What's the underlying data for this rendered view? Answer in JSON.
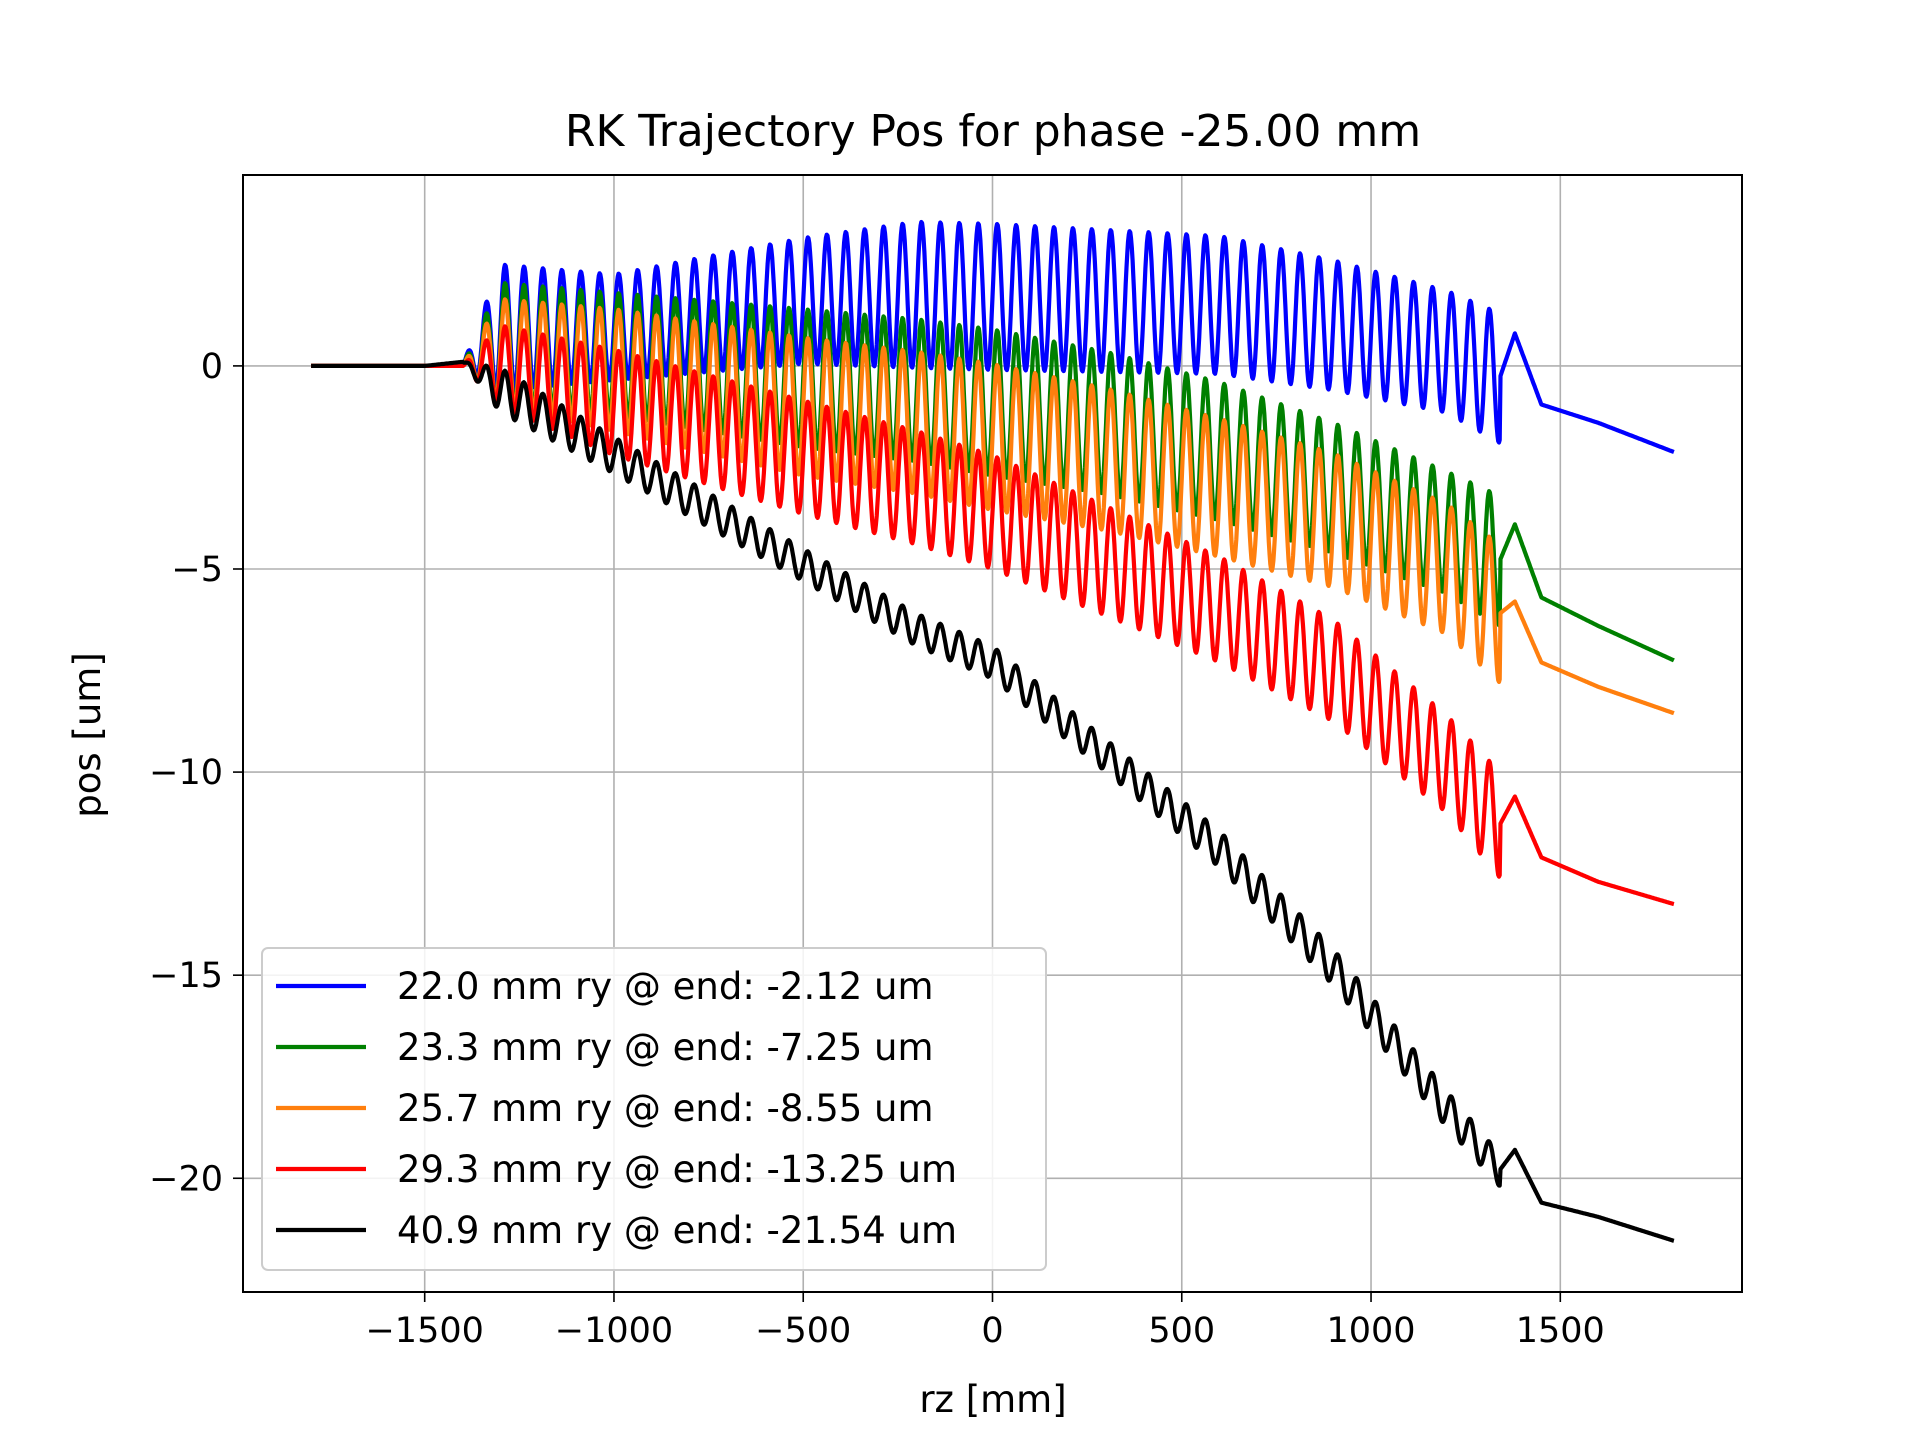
{
  "chart_data": {
    "type": "line",
    "title": "RK Trajectory Pos for phase -25.00 mm",
    "xlabel": "rz [mm]",
    "ylabel": "pos [um]",
    "xlim": [
      -1980,
      1980
    ],
    "ylim": [
      -22.8,
      4.7
    ],
    "xticks": [
      -1500,
      -1000,
      -500,
      0,
      500,
      1000,
      1500
    ],
    "xtick_labels": [
      "−1500",
      "−1000",
      "−500",
      "0",
      "500",
      "1000",
      "1500"
    ],
    "yticks": [
      0,
      -5,
      -10,
      -15,
      -20
    ],
    "ytick_labels": [
      "0",
      "−5",
      "−10",
      "−15",
      "−20"
    ],
    "grid": true,
    "legend_position": "lower-left",
    "undulator": {
      "start": -1400,
      "end": 1340,
      "period_mm": 50
    },
    "series": [
      {
        "name": "22.0 mm ry @ end: -2.12 um",
        "color": "#0000ff",
        "x": [
          -1800,
          -1500,
          -1400,
          -1300,
          -1000,
          -500,
          -200,
          0,
          300,
          600,
          900,
          1200,
          1340,
          1380,
          1450,
          1600,
          1800
        ],
        "center": [
          0,
          0,
          0,
          0.95,
          0.95,
          1.6,
          1.75,
          1.7,
          1.6,
          1.5,
          1.0,
          0.35,
          -0.3,
          0.8,
          -0.95,
          -1.4,
          -2.12
        ],
        "amplitude": [
          0,
          0,
          0,
          1.55,
          1.3,
          1.55,
          1.8,
          1.8,
          1.75,
          1.7,
          1.6,
          1.5,
          1.6,
          0,
          0,
          0,
          0
        ]
      },
      {
        "name": "23.3 mm ry @ end: -7.25 um",
        "color": "#008000",
        "x": [
          -1800,
          -1500,
          -1400,
          -1300,
          -1000,
          -500,
          -200,
          0,
          300,
          600,
          900,
          1200,
          1340,
          1380,
          1450,
          1600,
          1800
        ],
        "center": [
          0,
          0,
          0,
          0.55,
          0.3,
          -0.3,
          -0.6,
          -0.9,
          -1.4,
          -2.1,
          -3.0,
          -4.1,
          -4.8,
          -3.9,
          -5.7,
          -6.4,
          -7.25
        ],
        "amplitude": [
          0,
          0,
          0,
          1.5,
          1.5,
          1.7,
          1.75,
          1.8,
          1.75,
          1.7,
          1.6,
          1.5,
          1.6,
          0,
          0,
          0,
          0
        ]
      },
      {
        "name": "25.7 mm ry @ end: -8.55 um",
        "color": "#ff7f0e",
        "x": [
          -1800,
          -1500,
          -1400,
          -1300,
          -1000,
          -500,
          -200,
          0,
          300,
          600,
          900,
          1200,
          1340,
          1380,
          1450,
          1600,
          1800
        ],
        "center": [
          0,
          0,
          0,
          0.35,
          -0.1,
          -1.0,
          -1.4,
          -1.75,
          -2.3,
          -3.0,
          -3.8,
          -5.0,
          -6.1,
          -5.8,
          -7.3,
          -7.9,
          -8.55
        ],
        "amplitude": [
          0,
          0,
          0,
          1.3,
          1.5,
          1.7,
          1.75,
          1.8,
          1.75,
          1.7,
          1.65,
          1.6,
          1.7,
          0,
          0,
          0,
          0
        ]
      },
      {
        "name": "29.3 mm ry @ end: -13.25 um",
        "color": "#ff0000",
        "x": [
          -1800,
          -1500,
          -1400,
          -1300,
          -1000,
          -500,
          -200,
          0,
          300,
          600,
          900,
          1200,
          1340,
          1380,
          1450,
          1600,
          1800
        ],
        "center": [
          0,
          0,
          0,
          0.0,
          -0.9,
          -2.25,
          -3.0,
          -3.6,
          -4.8,
          -6.0,
          -7.5,
          -9.8,
          -11.3,
          -10.6,
          -12.1,
          -12.7,
          -13.25
        ],
        "amplitude": [
          0,
          0,
          0,
          1.0,
          1.3,
          1.4,
          1.4,
          1.4,
          1.35,
          1.3,
          1.25,
          1.2,
          1.3,
          0,
          0,
          0,
          0
        ]
      },
      {
        "name": "40.9 mm ry @ end: -21.54 um",
        "color": "#000000",
        "x": [
          -1800,
          -1500,
          -1400,
          -1300,
          -1000,
          -500,
          -200,
          0,
          300,
          600,
          900,
          1200,
          1340,
          1380,
          1450,
          1600,
          1800
        ],
        "center": [
          0,
          0,
          0.1,
          -0.6,
          -2.2,
          -4.9,
          -6.5,
          -7.3,
          -9.6,
          -11.9,
          -14.8,
          -18.3,
          -19.8,
          -19.3,
          -20.6,
          -20.95,
          -21.54
        ],
        "amplitude": [
          0,
          0,
          0,
          0.55,
          0.45,
          0.4,
          0.4,
          0.4,
          0.4,
          0.45,
          0.45,
          0.45,
          0.4,
          0,
          0,
          0,
          0
        ]
      }
    ]
  }
}
